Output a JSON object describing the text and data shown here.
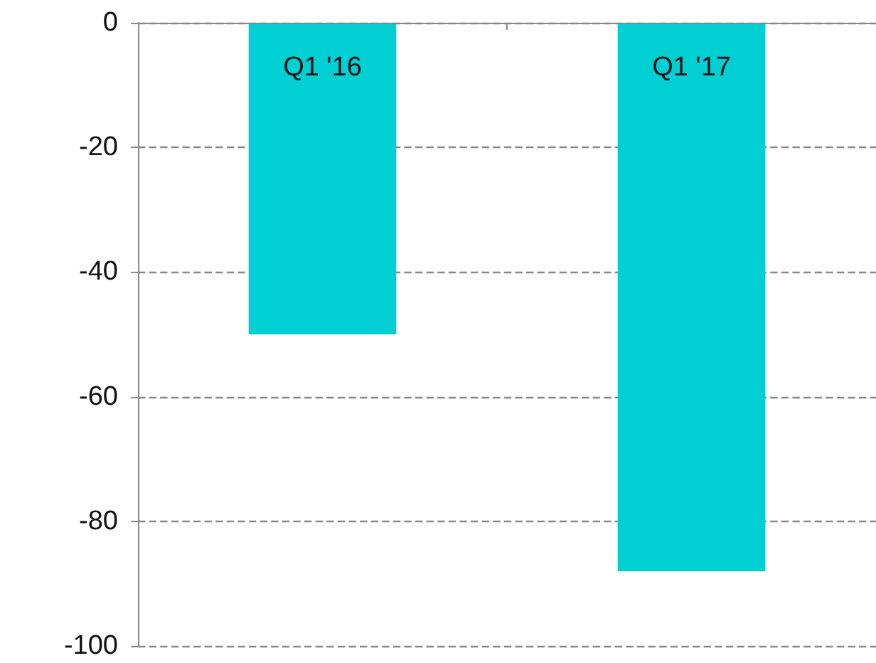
{
  "chart_data": {
    "type": "bar",
    "categories": [
      "Q1 '16",
      "Q1 '17"
    ],
    "values": [
      -50,
      -88
    ],
    "color": "#00cfd4",
    "ylim": [
      -100,
      0
    ],
    "yticks": [
      -100,
      -80,
      -60,
      -40,
      -20,
      0
    ],
    "grid": "y"
  }
}
